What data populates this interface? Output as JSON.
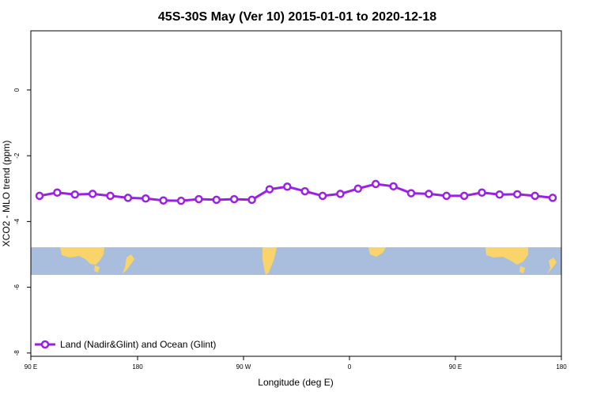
{
  "chart_data": {
    "type": "line",
    "title": "45S-30S May (Ver 10)   2015-01-01 to 2020-12-18",
    "xlabel": "Longitude (deg E)",
    "ylabel": "XCO2 - MLO trend (ppm)",
    "xlim": [
      87,
      180
    ],
    "ylim": [
      -8.1,
      1.8
    ],
    "x_tick_labels": [
      "90 E",
      "180",
      "90 W",
      "0",
      "90 E",
      "180"
    ],
    "y_tick_labels": [
      "0",
      "-2",
      "-4",
      "-6",
      "-8"
    ],
    "y_ticks": [
      0,
      -2,
      -4,
      -6,
      -8
    ],
    "grid": false,
    "legend_position": "bottom-left",
    "background_band": "world map strip (land yellow, ocean blue) for 45S-30S",
    "series": [
      {
        "name": "Land (Nadir&Glint) and Ocean (Glint)",
        "color": "#9b1fe8",
        "marker": "open-circle",
        "values": [
          -3.22,
          -3.12,
          -3.18,
          -3.16,
          -3.22,
          -3.28,
          -3.3,
          -3.36,
          -3.37,
          -3.32,
          -3.34,
          -3.32,
          -3.34,
          -3.02,
          -2.94,
          -3.08,
          -3.22,
          -3.16,
          -3.0,
          -2.86,
          -2.93,
          -3.14,
          -3.16,
          -3.22,
          -3.22,
          -3.12,
          -3.18,
          -3.17,
          -3.22,
          -3.28
        ]
      }
    ]
  },
  "colors": {
    "land": "#f9d46a",
    "ocean": "#a9bddc",
    "series": "#9b1fe8"
  }
}
